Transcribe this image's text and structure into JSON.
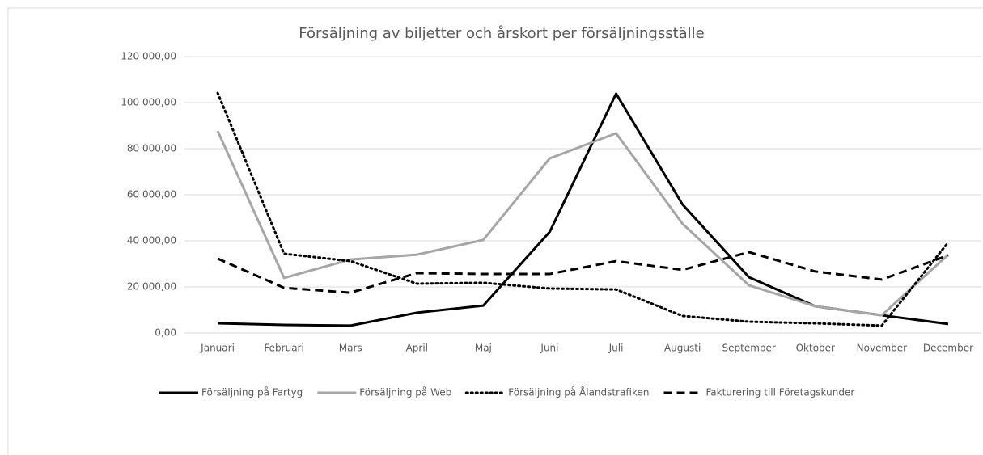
{
  "chart_data": {
    "type": "line",
    "title": "Försäljning av biljetter och årskort per försäljningsställe",
    "categories": [
      "Januari",
      "Februari",
      "Mars",
      "April",
      "Maj",
      "Juni",
      "Juli",
      "Augusti",
      "September",
      "Oktober",
      "November",
      "December"
    ],
    "series": [
      {
        "name": "Försäljning på Fartyg",
        "color": "#000000",
        "dash": "solid",
        "values": [
          4200,
          3500,
          3200,
          8800,
          11900,
          43900,
          103900,
          55800,
          24200,
          11600,
          7700,
          3900
        ]
      },
      {
        "name": "Försäljning på Web",
        "color": "#a6a6a6",
        "dash": "solid",
        "values": [
          87700,
          23900,
          31900,
          34000,
          40400,
          75800,
          86700,
          47400,
          20700,
          11600,
          7700,
          34000
        ]
      },
      {
        "name": "Försäljning på Ålandstrafiken",
        "color": "#000000",
        "dash": "dotted",
        "values": [
          104200,
          34400,
          31200,
          21400,
          21800,
          19300,
          18900,
          7400,
          4900,
          4200,
          3200,
          39300
        ]
      },
      {
        "name": "Fakturering till Företagskunder",
        "color": "#000000",
        "dash": "dashed",
        "values": [
          32300,
          19600,
          17500,
          26000,
          25600,
          25600,
          31200,
          27400,
          35100,
          26700,
          23200,
          33700
        ]
      }
    ],
    "ylim": [
      0,
      120000
    ],
    "yticks": [
      {
        "value": 0,
        "label": "0,00"
      },
      {
        "value": 20000,
        "label": "20 000,00"
      },
      {
        "value": 40000,
        "label": "40 000,00"
      },
      {
        "value": 60000,
        "label": "60 000,00"
      },
      {
        "value": 80000,
        "label": "80 000,00"
      },
      {
        "value": 100000,
        "label": "100 000,00"
      },
      {
        "value": 120000,
        "label": "120 000,00"
      }
    ],
    "grid": true,
    "legend": "bottom"
  }
}
